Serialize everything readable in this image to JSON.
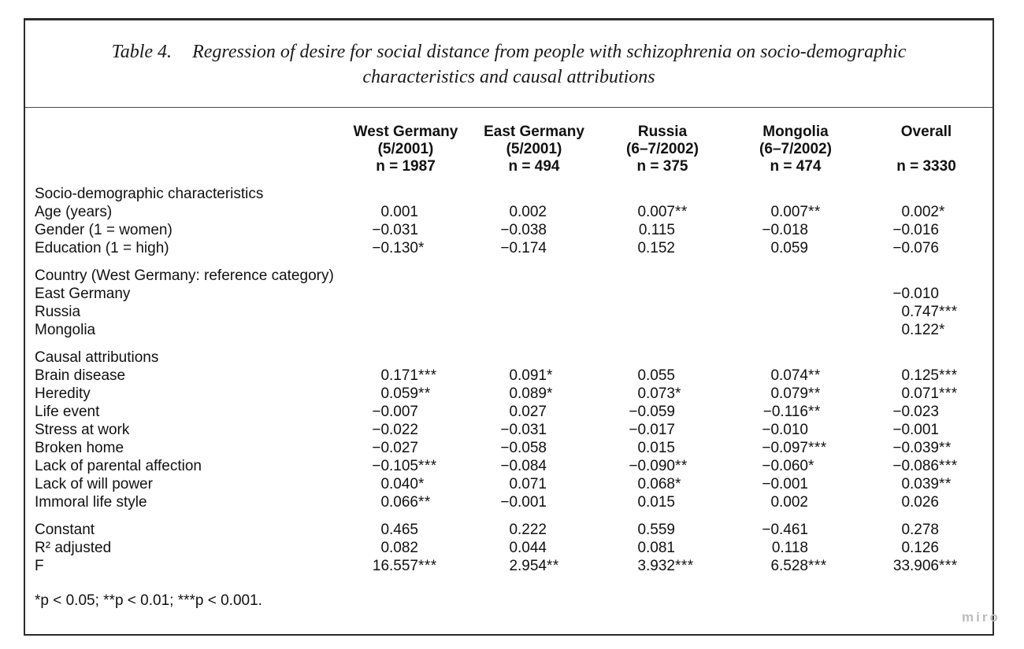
{
  "title": {
    "label": "Table 4.",
    "line1": "Regression of desire for social distance from people with schizophrenia on socio-demographic",
    "line2": "characteristics and causal attributions"
  },
  "columns": [
    {
      "name": "West Germany",
      "period": "(5/2001)",
      "n": "n = 1987"
    },
    {
      "name": "East Germany",
      "period": "(5/2001)",
      "n": "n = 494"
    },
    {
      "name": "Russia",
      "period": "(6–7/2002)",
      "n": "n = 375"
    },
    {
      "name": "Mongolia",
      "period": "(6–7/2002)",
      "n": "n = 474"
    },
    {
      "name": "Overall",
      "period": "",
      "n": "n = 3330"
    }
  ],
  "sections": [
    {
      "header": "Socio-demographic characteristics",
      "rows": [
        {
          "label": "Age (years)",
          "values": [
            "0.001",
            "0.002",
            "0.007**",
            "0.007**",
            "0.002*"
          ]
        },
        {
          "label": "Gender (1 = women)",
          "values": [
            "−0.031",
            "−0.038",
            "0.115",
            "−0.018",
            "−0.016"
          ]
        },
        {
          "label": "Education (1 = high)",
          "values": [
            "−0.130*",
            "−0.174",
            "0.152",
            "0.059",
            "−0.076"
          ]
        }
      ]
    },
    {
      "header": "Country (West Germany: reference category)",
      "rows": [
        {
          "label": "East Germany",
          "values": [
            "",
            "",
            "",
            "",
            "−0.010"
          ]
        },
        {
          "label": "Russia",
          "values": [
            "",
            "",
            "",
            "",
            "0.747***"
          ]
        },
        {
          "label": "Mongolia",
          "values": [
            "",
            "",
            "",
            "",
            "0.122*"
          ]
        }
      ]
    },
    {
      "header": "Causal attributions",
      "rows": [
        {
          "label": "Brain disease",
          "values": [
            "0.171***",
            "0.091*",
            "0.055",
            "0.074**",
            "0.125***"
          ]
        },
        {
          "label": "Heredity",
          "values": [
            "0.059**",
            "0.089*",
            "0.073*",
            "0.079**",
            "0.071***"
          ]
        },
        {
          "label": "Life event",
          "values": [
            "−0.007",
            "0.027",
            "−0.059",
            "−0.116**",
            "−0.023"
          ]
        },
        {
          "label": "Stress at work",
          "values": [
            "−0.022",
            "−0.031",
            "−0.017",
            "−0.010",
            "−0.001"
          ]
        },
        {
          "label": "Broken home",
          "values": [
            "−0.027",
            "−0.058",
            "0.015",
            "−0.097***",
            "−0.039**"
          ]
        },
        {
          "label": "Lack of parental affection",
          "values": [
            "−0.105***",
            "−0.084",
            "−0.090**",
            "−0.060*",
            "−0.086***"
          ]
        },
        {
          "label": "Lack of will power",
          "values": [
            "0.040*",
            "0.071",
            "0.068*",
            "−0.001",
            "0.039**"
          ]
        },
        {
          "label": "Immoral life style",
          "values": [
            "0.066**",
            "−0.001",
            "0.015",
            "0.002",
            "0.026"
          ]
        }
      ]
    },
    {
      "header": null,
      "rows": [
        {
          "label": "Constant",
          "values": [
            "0.465",
            "0.222",
            "0.559",
            "−0.461",
            "0.278"
          ]
        },
        {
          "label": "R² adjusted",
          "values": [
            "0.082",
            "0.044",
            "0.081",
            "0.118",
            "0.126"
          ]
        },
        {
          "label": "F",
          "values": [
            "16.557***",
            "2.954**",
            "3.932***",
            "6.528***",
            "33.906***"
          ]
        }
      ]
    }
  ],
  "footnote": "*p < 0.05; **p < 0.01; ***p < 0.001.",
  "watermark": "miro"
}
